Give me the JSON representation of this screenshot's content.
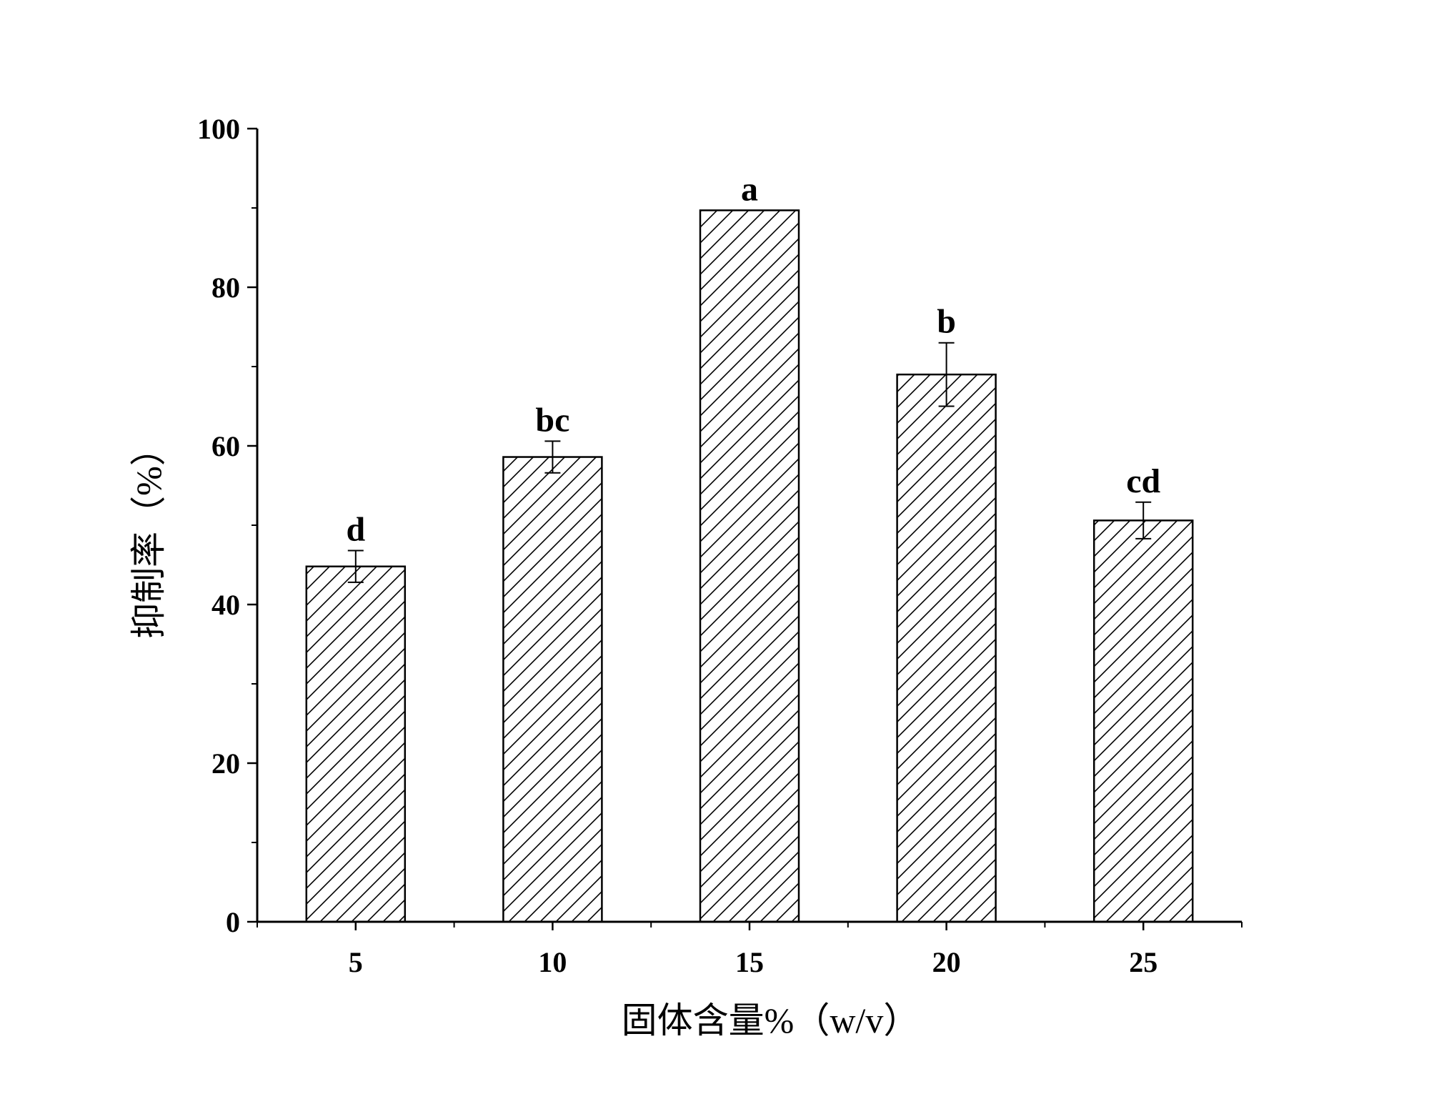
{
  "chart_data": {
    "type": "bar",
    "title": "",
    "xlabel": "固体含量%（w/v）",
    "ylabel": "抑制率（%）",
    "categories": [
      "5",
      "10",
      "15",
      "20",
      "25"
    ],
    "values": [
      44.8,
      58.6,
      89.7,
      69.0,
      50.6
    ],
    "errors": [
      2.0,
      2.0,
      0,
      4.0,
      2.3
    ],
    "significance": [
      "d",
      "bc",
      "a",
      "b",
      "cd"
    ],
    "ylim": [
      0,
      100
    ],
    "yticks": [
      0,
      20,
      40,
      60,
      80,
      100
    ],
    "bar_fill": "hatched",
    "grid": false,
    "legend": "none",
    "colors": {
      "bar_edge": "#000000",
      "hatch": "#000000",
      "background": "#ffffff"
    }
  }
}
